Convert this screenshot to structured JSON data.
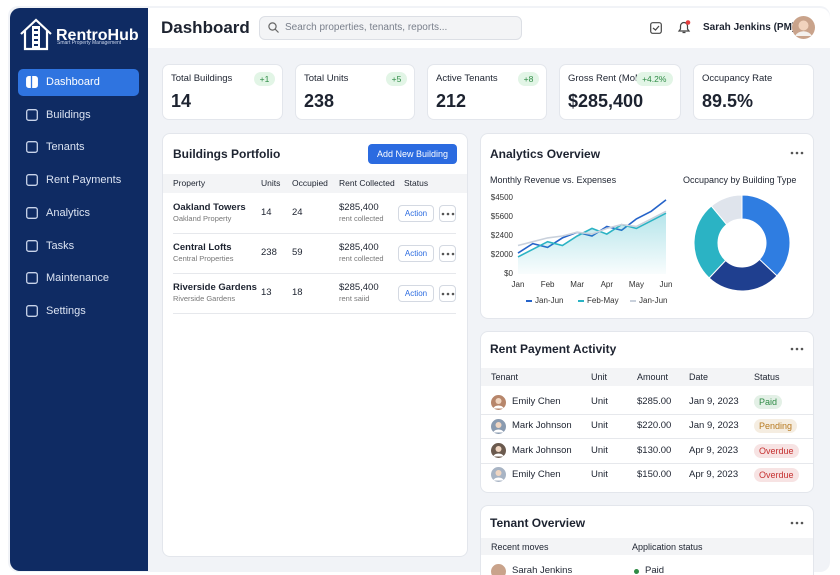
{
  "sidebar": {
    "brand": "RentroHub",
    "tagline": "Smart Property Management",
    "nav": [
      "Dashboard",
      "Buildings",
      "Tenants",
      "Rent Payments",
      "Analytics",
      "Tasks",
      "Maintenance",
      "Settings"
    ],
    "active": 0
  },
  "header": {
    "title": "Dashboard",
    "search_placeholder": "Search properties, tenants, reports...",
    "user": "Sarah Jenkins (PM)"
  },
  "stats": [
    {
      "label": "Total Buildings",
      "value": "14",
      "delta": "+1"
    },
    {
      "label": "Total Units",
      "value": "238",
      "delta": "+5"
    },
    {
      "label": "Active Tenants",
      "value": "212",
      "delta": "+8"
    },
    {
      "label": "Gross Rent (MoM)",
      "value": "$285,400",
      "delta": "+4.2%"
    },
    {
      "label": "Occupancy Rate",
      "value": "89.5%"
    }
  ],
  "buildings": {
    "title": "Buildings Portfolio",
    "button": "Add New Building",
    "columns": [
      "Property",
      "Units",
      "Occupied",
      "Rent Collected",
      "Status"
    ],
    "rows": [
      {
        "name": "Oakland Towers",
        "sub": "Oakland Property",
        "units": 14,
        "occupied": 24,
        "rent": "$285,400",
        "rent_note": "rent collected",
        "action": "Action"
      },
      {
        "name": "Central Lofts",
        "sub": "Central Properties",
        "units": 238,
        "occupied": 59,
        "rent": "$285,400",
        "rent_note": "rent collected",
        "action": "Action"
      },
      {
        "name": "Riverside Gardens",
        "sub": "Riverside Gardens",
        "units": 13,
        "occupied": 18,
        "rent": "$285,400",
        "rent_note": "rent saiid",
        "action": "Action"
      }
    ]
  },
  "analytics": {
    "title": "Analytics Overview",
    "line_chart": {
      "type": "line",
      "title": "Monthly Revenue vs. Expenses",
      "categories": [
        "Jan",
        null,
        "Feb",
        null,
        "Mar",
        null,
        "Apr",
        null,
        "May",
        null,
        "Jun"
      ],
      "y_labels": [
        "$0",
        "$2000",
        "$2400",
        "$5600",
        "$4500"
      ],
      "ylim": [
        0,
        4
      ],
      "series": [
        {
          "name": "Jan-Jun",
          "color": "#2563c9",
          "values": [
            1.1,
            1.6,
            1.4,
            1.9,
            2.2,
            2.0,
            2.5,
            2.3,
            2.9,
            3.3,
            3.9
          ]
        },
        {
          "name": "Feb-May",
          "color": "#2bb3c4",
          "area": true,
          "values": [
            0.9,
            1.3,
            1.7,
            1.5,
            2.0,
            2.4,
            2.1,
            2.6,
            2.4,
            2.8,
            3.2
          ]
        },
        {
          "name": "Jan-Jun",
          "color": "#c9d1dc",
          "values": [
            1.5,
            1.7,
            1.9,
            2.0,
            2.2,
            2.1,
            2.4,
            2.6,
            2.5,
            2.9,
            3.3
          ]
        }
      ]
    },
    "donut_chart": {
      "type": "pie",
      "title": "Occupancy by Building Type",
      "values": [
        37,
        25,
        27,
        11
      ],
      "colors": [
        "#2f7de1",
        "#1f3f8f",
        "#2bb3c4",
        "#dfe4ec"
      ]
    }
  },
  "payments": {
    "title": "Rent Payment Activity",
    "columns": [
      "Tenant",
      "Unit",
      "Amount",
      "Date",
      "Status"
    ],
    "rows": [
      {
        "tenant": "Emily Chen",
        "unit": "Unit",
        "amount": "$285.00",
        "date": "Jan 9, 2023",
        "status": "Paid",
        "status_color": "#2e8b45"
      },
      {
        "tenant": "Mark Johnson",
        "unit": "Unit",
        "amount": "$220.00",
        "date": "Jan 9, 2023",
        "status": "Pending",
        "status_color": "#b7791f"
      },
      {
        "tenant": "Mark Johnson",
        "unit": "Unit",
        "amount": "$130.00",
        "date": "Apr 9, 2023",
        "status": "Overdue",
        "status_color": "#c53030"
      },
      {
        "tenant": "Emily Chen",
        "unit": "Unit",
        "amount": "$150.00",
        "date": "Apr 9, 2023",
        "status": "Overdue",
        "status_color": "#c53030"
      }
    ]
  },
  "tenants": {
    "title": "Tenant Overview",
    "columns": [
      "Recent moves",
      "Application status"
    ],
    "rows": [
      {
        "name": "Sarah Jenkins",
        "status": "Paid"
      }
    ]
  }
}
